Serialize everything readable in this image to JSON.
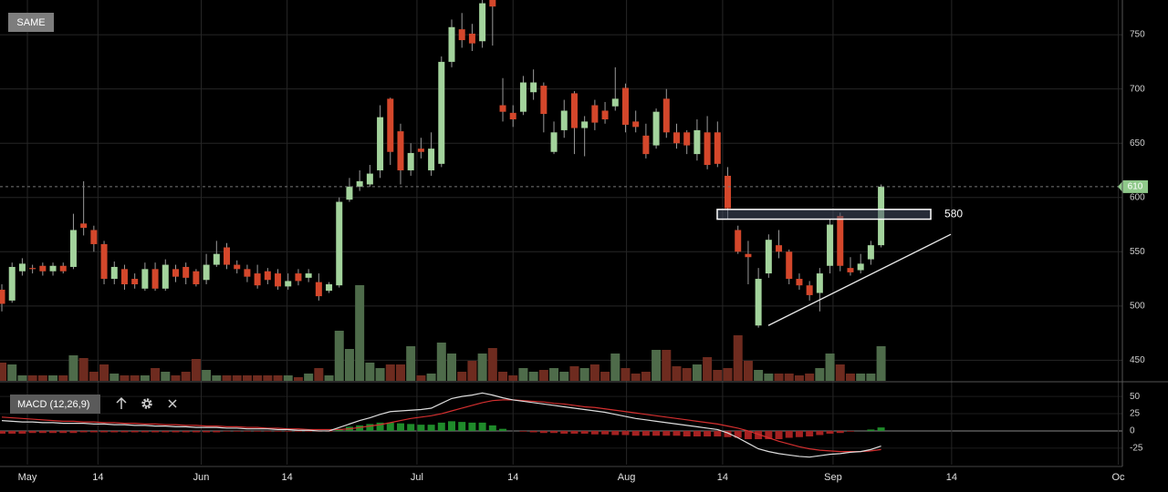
{
  "chart_data": {
    "type": "candlestick",
    "button": "SAME",
    "categories": [
      null,
      null,
      null,
      null,
      null,
      null,
      null,
      null,
      null,
      null,
      null,
      null,
      null,
      null,
      null,
      null,
      null,
      null,
      null,
      null,
      null,
      null,
      null,
      null,
      null,
      null,
      null,
      null,
      null,
      null,
      null,
      null,
      null,
      null,
      null,
      null,
      null,
      null,
      null,
      null,
      null,
      null,
      null,
      null,
      null,
      null,
      null,
      null,
      null,
      null,
      null,
      null,
      null,
      null,
      null,
      null,
      null,
      null,
      null,
      null,
      null,
      null,
      null,
      null,
      null,
      null,
      null,
      null,
      null,
      null,
      null,
      null,
      null,
      null,
      null,
      null,
      null,
      null,
      null,
      null,
      null,
      null,
      null,
      null,
      null,
      null,
      null
    ],
    "open": [
      515,
      505,
      532,
      535,
      537,
      532,
      537,
      536,
      576,
      570,
      557,
      525,
      534,
      525,
      516,
      534,
      516,
      534,
      536,
      532,
      524,
      538,
      554,
      538,
      534,
      530,
      532,
      530,
      518,
      530,
      526,
      522,
      514,
      519,
      598,
      610,
      612,
      625,
      691,
      661,
      625,
      645,
      625,
      631,
      725,
      755,
      751,
      744,
      782,
      685,
      678,
      679,
      697,
      703,
      642,
      662,
      696,
      664,
      685,
      680,
      684,
      701,
      670,
      657,
      648,
      691,
      660,
      660,
      640,
      660,
      660,
      620,
      570,
      548,
      482,
      530,
      556,
      550,
      525,
      519,
      512,
      537,
      583,
      535,
      533,
      543,
      556
    ],
    "high": [
      520,
      540,
      544,
      538,
      540,
      540,
      540,
      585,
      615,
      574,
      560,
      541,
      538,
      530,
      540,
      540,
      543,
      538,
      540,
      534,
      548,
      560,
      558,
      542,
      538,
      538,
      535,
      534,
      530,
      534,
      534,
      530,
      522,
      600,
      618,
      625,
      630,
      685,
      692,
      668,
      650,
      655,
      660,
      730,
      764,
      770,
      760,
      785,
      782,
      710,
      685,
      712,
      718,
      706,
      670,
      690,
      698,
      675,
      690,
      688,
      720,
      705,
      680,
      668,
      682,
      700,
      668,
      662,
      672,
      675,
      670,
      628,
      574,
      560,
      535,
      566,
      570,
      552,
      530,
      523,
      535,
      580,
      586,
      545,
      548,
      560,
      612
    ],
    "low": [
      495,
      503,
      528,
      530,
      528,
      528,
      530,
      534,
      565,
      550,
      520,
      520,
      515,
      516,
      514,
      514,
      514,
      522,
      520,
      518,
      520,
      536,
      534,
      530,
      522,
      516,
      520,
      515,
      515,
      519,
      522,
      505,
      512,
      517,
      596,
      606,
      610,
      618,
      630,
      612,
      620,
      636,
      620,
      628,
      720,
      738,
      735,
      738,
      740,
      670,
      665,
      676,
      690,
      660,
      640,
      655,
      640,
      638,
      662,
      668,
      680,
      660,
      660,
      636,
      645,
      655,
      645,
      640,
      634,
      626,
      628,
      580,
      548,
      520,
      480,
      526,
      544,
      520,
      515,
      505,
      495,
      530,
      532,
      528,
      530,
      538,
      554
    ],
    "close": [
      502,
      536,
      539,
      534,
      532,
      537,
      532,
      570,
      572,
      557,
      525,
      536,
      520,
      520,
      534,
      516,
      538,
      527,
      526,
      520,
      538,
      548,
      538,
      534,
      527,
      519,
      524,
      518,
      523,
      523,
      530,
      509,
      520,
      596,
      610,
      615,
      622,
      674,
      642,
      625,
      641,
      642,
      645,
      725,
      757,
      745,
      742,
      779,
      776,
      679,
      672,
      706,
      706,
      677,
      660,
      680,
      664,
      670,
      669,
      672,
      691,
      667,
      665,
      640,
      679,
      660,
      650,
      648,
      662,
      630,
      631,
      590,
      550,
      545,
      525,
      561,
      550,
      525,
      519,
      510,
      530,
      575,
      537,
      531,
      539,
      556,
      610
    ],
    "volume": [
      20,
      18,
      6,
      6,
      6,
      6,
      6,
      28,
      25,
      10,
      18,
      8,
      6,
      6,
      6,
      14,
      10,
      6,
      10,
      24,
      12,
      6,
      6,
      6,
      6,
      6,
      6,
      6,
      6,
      4,
      8,
      14,
      6,
      55,
      35,
      105,
      20,
      14,
      18,
      18,
      38,
      6,
      8,
      42,
      30,
      10,
      22,
      30,
      36,
      10,
      6,
      14,
      10,
      12,
      14,
      10,
      16,
      14,
      18,
      10,
      30,
      14,
      8,
      10,
      34,
      34,
      16,
      14,
      18,
      26,
      12,
      14,
      50,
      22,
      12,
      8,
      8,
      8,
      6,
      8,
      14,
      30,
      18,
      8,
      8,
      8,
      38
    ],
    "up_color": "#a3d39c",
    "down_color": "#d4472b",
    "volume_up_color": "#4e6b4a",
    "volume_down_color": "#6e2b1f",
    "xlim": [
      -0.18,
      109.6
    ],
    "xticks": [
      {
        "value": 2.5,
        "label": "May"
      },
      {
        "value": 9.4,
        "label": "14"
      },
      {
        "value": 19.5,
        "label": "Jun"
      },
      {
        "value": 27.9,
        "label": "14"
      },
      {
        "value": 40.6,
        "label": "Jul"
      },
      {
        "value": 50,
        "label": "14"
      },
      {
        "value": 61.1,
        "label": "Aug"
      },
      {
        "value": 70.5,
        "label": "14"
      },
      {
        "value": 81.3,
        "label": "Sep"
      },
      {
        "value": 92.9,
        "label": "14"
      },
      {
        "value": 109.2,
        "label": "Oc"
      }
    ],
    "ylim": [
      431,
      782
    ],
    "yticks": [
      450,
      500,
      550,
      600,
      650,
      700,
      750
    ],
    "volume_ylim": [
      0,
      418
    ],
    "last_price": 610,
    "last_price_color": "#8fc98a",
    "level_box": {
      "low": 580,
      "high": 589,
      "x": [
        69.97,
        90.86
      ]
    },
    "trend_line": {
      "x": [
        74.97,
        92.82
      ],
      "y": [
        482,
        566
      ]
    },
    "macd": {
      "name": "MACD (12,26,9)",
      "ylim": [
        -49,
        70
      ],
      "yticks": [
        50,
        25,
        0,
        -25
      ],
      "macd_color": "#dddddd",
      "signal_color": "#d32f2f",
      "hist_up_color": "#1f8a2a",
      "hist_down_color": "#a52222",
      "macd": [
        15,
        14,
        13,
        13,
        12,
        12,
        11,
        11,
        11,
        10,
        10,
        9,
        9,
        8,
        8,
        7,
        7,
        6,
        6,
        5,
        5,
        5,
        4,
        4,
        3,
        3,
        3,
        2,
        2,
        1,
        1,
        0,
        0,
        5,
        10,
        15,
        19,
        24,
        28,
        29,
        30,
        31,
        33,
        40,
        47,
        50,
        52,
        55,
        52,
        48,
        45,
        43,
        41,
        39,
        37,
        35,
        33,
        31,
        29,
        27,
        24,
        21,
        18,
        16,
        14,
        12,
        10,
        8,
        6,
        4,
        2,
        -3,
        -10,
        -18,
        -26,
        -30,
        -33,
        -35,
        -37,
        -38,
        -36,
        -34,
        -33,
        -31,
        -30,
        -27,
        -22
      ],
      "signal": [
        20,
        19,
        18,
        17,
        16,
        15,
        14,
        14,
        13,
        13,
        12,
        12,
        11,
        11,
        10,
        10,
        9,
        9,
        8,
        8,
        7,
        7,
        6,
        6,
        5,
        5,
        4,
        4,
        3,
        3,
        2,
        2,
        2,
        2,
        3,
        5,
        7,
        9,
        12,
        15,
        18,
        20,
        22,
        25,
        29,
        33,
        37,
        41,
        44,
        45,
        45,
        44,
        43,
        42,
        40,
        39,
        37,
        35,
        34,
        32,
        30,
        28,
        26,
        24,
        22,
        20,
        18,
        16,
        14,
        12,
        10,
        7,
        4,
        0,
        -5,
        -10,
        -15,
        -19,
        -23,
        -26,
        -28,
        -29,
        -30,
        -30,
        -30,
        -29,
        -27
      ],
      "histogram": [
        -4,
        -4,
        -4,
        -3,
        -3,
        -3,
        -3,
        -3,
        -2,
        -2,
        -2,
        -2,
        -2,
        -2,
        -2,
        -2,
        -2,
        -2,
        -2,
        -2,
        -2,
        -2,
        -1,
        -1,
        -1,
        -1,
        -1,
        -1,
        -1,
        -1,
        -1,
        -1,
        -1,
        3,
        6,
        8,
        10,
        12,
        12,
        11,
        10,
        9,
        9,
        12,
        14,
        13,
        12,
        12,
        8,
        3,
        0,
        -1,
        -2,
        -3,
        -3,
        -4,
        -4,
        -4,
        -5,
        -5,
        -6,
        -6,
        -7,
        -7,
        -7,
        -7,
        -7,
        -8,
        -8,
        -8,
        -8,
        -9,
        -10,
        -12,
        -12,
        -12,
        -12,
        -10,
        -9,
        -8,
        -6,
        -4,
        -3,
        -1,
        0,
        2,
        5
      ]
    }
  }
}
